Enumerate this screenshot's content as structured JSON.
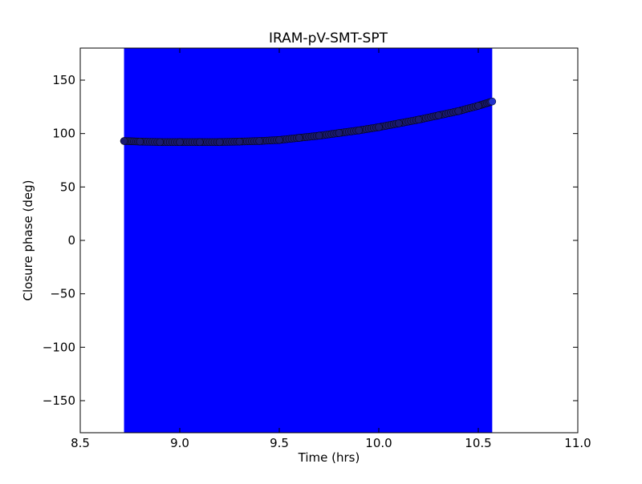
{
  "chart_data": {
    "type": "scatter",
    "title": "IRAM-pV-SMT-SPT",
    "xlabel": "Time (hrs)",
    "ylabel": "Closure phase (deg)",
    "xlim": [
      8.5,
      11.0
    ],
    "ylim": [
      -180,
      180
    ],
    "xticks": [
      8.5,
      9.0,
      9.5,
      10.0,
      10.5,
      11.0
    ],
    "xtick_labels": [
      "8.5",
      "9.0",
      "9.5",
      "10.0",
      "10.5",
      "11.0"
    ],
    "yticks": [
      150,
      100,
      50,
      0,
      -50,
      -100,
      -150
    ],
    "ytick_labels": [
      "150",
      "100",
      "50",
      "0",
      "−50",
      "−100",
      "−150"
    ],
    "grid": false,
    "legend": "none",
    "shaded_band": {
      "x_start": 8.72,
      "x_end": 10.57,
      "color": "#0000ff"
    },
    "series": [
      {
        "marker": "circle",
        "color": "#1a1a6e",
        "x": [
          8.72,
          8.8,
          8.9,
          9.0,
          9.1,
          9.2,
          9.3,
          9.4,
          9.5,
          9.6,
          9.7,
          9.8,
          9.9,
          10.0,
          10.1,
          10.2,
          10.3,
          10.4,
          10.5,
          10.57
        ],
        "y": [
          93,
          92.5,
          92,
          92,
          92,
          92,
          92.5,
          93,
          94,
          96,
          98,
          100.5,
          103,
          106,
          109.5,
          113,
          117,
          121,
          126,
          130
        ]
      }
    ]
  }
}
